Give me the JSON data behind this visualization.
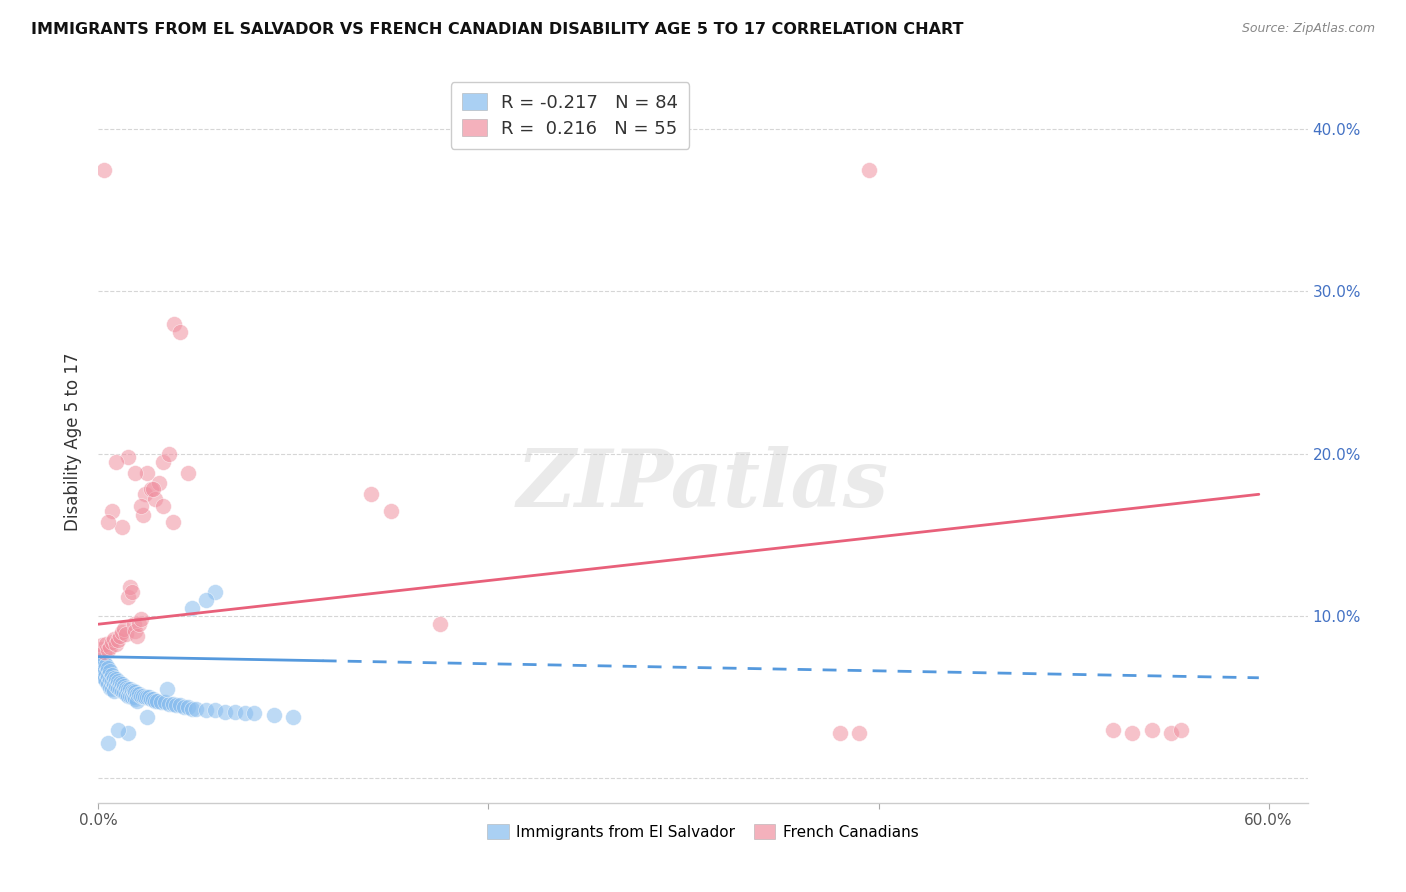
{
  "title": "IMMIGRANTS FROM EL SALVADOR VS FRENCH CANADIAN DISABILITY AGE 5 TO 17 CORRELATION CHART",
  "source": "Source: ZipAtlas.com",
  "ylabel": "Disability Age 5 to 17",
  "xlim": [
    0.0,
    0.62
  ],
  "ylim": [
    -0.015,
    0.43
  ],
  "yticks": [
    0.0,
    0.1,
    0.2,
    0.3,
    0.4
  ],
  "xticks": [
    0.0,
    0.2,
    0.4,
    0.6
  ],
  "xtick_labels": [
    "0.0%",
    "",
    "",
    "60.0%"
  ],
  "ytick_labels_right": [
    "",
    "10.0%",
    "20.0%",
    "30.0%",
    "40.0%"
  ],
  "blue_color": "#87BCEE",
  "pink_color": "#F090A0",
  "blue_line_color": "#5599DD",
  "pink_line_color": "#E8607A",
  "background_color": "#ffffff",
  "grid_color": "#cccccc",
  "legend_R_blue": "-0.217",
  "legend_N_blue": "84",
  "legend_R_pink": "0.216",
  "legend_N_pink": "55",
  "label_blue": "Immigrants from El Salvador",
  "label_pink": "French Canadians",
  "watermark": "ZIPatlas",
  "blue_line_solid_end": 0.115,
  "blue_line_x0": 0.0,
  "blue_line_x1": 0.595,
  "blue_line_y0": 0.075,
  "blue_line_y1": 0.062,
  "pink_line_x0": 0.0,
  "pink_line_x1": 0.595,
  "pink_line_y0": 0.095,
  "pink_line_y1": 0.175,
  "blue_scatter_x": [
    0.001,
    0.001,
    0.001,
    0.002,
    0.002,
    0.002,
    0.003,
    0.003,
    0.003,
    0.004,
    0.004,
    0.004,
    0.005,
    0.005,
    0.005,
    0.006,
    0.006,
    0.006,
    0.007,
    0.007,
    0.007,
    0.008,
    0.008,
    0.008,
    0.009,
    0.009,
    0.01,
    0.01,
    0.011,
    0.011,
    0.012,
    0.012,
    0.013,
    0.013,
    0.014,
    0.014,
    0.015,
    0.015,
    0.016,
    0.016,
    0.017,
    0.017,
    0.018,
    0.018,
    0.019,
    0.019,
    0.02,
    0.02,
    0.021,
    0.022,
    0.023,
    0.024,
    0.025,
    0.026,
    0.027,
    0.028,
    0.029,
    0.03,
    0.032,
    0.034,
    0.036,
    0.038,
    0.04,
    0.042,
    0.044,
    0.046,
    0.048,
    0.05,
    0.055,
    0.06,
    0.065,
    0.07,
    0.075,
    0.08,
    0.09,
    0.1,
    0.06,
    0.055,
    0.048,
    0.035,
    0.025,
    0.015,
    0.01,
    0.005
  ],
  "blue_scatter_y": [
    0.075,
    0.07,
    0.065,
    0.073,
    0.068,
    0.063,
    0.072,
    0.067,
    0.062,
    0.07,
    0.065,
    0.06,
    0.068,
    0.063,
    0.058,
    0.066,
    0.061,
    0.056,
    0.064,
    0.06,
    0.055,
    0.062,
    0.058,
    0.054,
    0.061,
    0.057,
    0.06,
    0.056,
    0.059,
    0.055,
    0.058,
    0.054,
    0.057,
    0.053,
    0.056,
    0.052,
    0.055,
    0.051,
    0.055,
    0.051,
    0.054,
    0.05,
    0.054,
    0.05,
    0.053,
    0.049,
    0.052,
    0.048,
    0.052,
    0.051,
    0.051,
    0.05,
    0.05,
    0.05,
    0.049,
    0.049,
    0.048,
    0.048,
    0.047,
    0.047,
    0.046,
    0.046,
    0.045,
    0.045,
    0.044,
    0.044,
    0.043,
    0.043,
    0.042,
    0.042,
    0.041,
    0.041,
    0.04,
    0.04,
    0.039,
    0.038,
    0.115,
    0.11,
    0.105,
    0.055,
    0.038,
    0.028,
    0.03,
    0.022
  ],
  "pink_scatter_x": [
    0.001,
    0.002,
    0.003,
    0.004,
    0.005,
    0.006,
    0.007,
    0.008,
    0.009,
    0.01,
    0.011,
    0.012,
    0.013,
    0.014,
    0.015,
    0.016,
    0.017,
    0.018,
    0.019,
    0.02,
    0.021,
    0.022,
    0.023,
    0.024,
    0.025,
    0.027,
    0.029,
    0.031,
    0.033,
    0.036,
    0.039,
    0.042,
    0.046,
    0.038,
    0.033,
    0.028,
    0.022,
    0.019,
    0.015,
    0.012,
    0.009,
    0.007,
    0.005,
    0.003,
    0.14,
    0.15,
    0.175,
    0.38,
    0.39,
    0.395,
    0.52,
    0.53,
    0.54,
    0.55,
    0.555
  ],
  "pink_scatter_y": [
    0.08,
    0.082,
    0.078,
    0.083,
    0.079,
    0.081,
    0.084,
    0.086,
    0.083,
    0.085,
    0.088,
    0.09,
    0.092,
    0.089,
    0.112,
    0.118,
    0.115,
    0.095,
    0.091,
    0.088,
    0.095,
    0.098,
    0.162,
    0.175,
    0.188,
    0.178,
    0.172,
    0.182,
    0.195,
    0.2,
    0.28,
    0.275,
    0.188,
    0.158,
    0.168,
    0.178,
    0.168,
    0.188,
    0.198,
    0.155,
    0.195,
    0.165,
    0.158,
    0.375,
    0.175,
    0.165,
    0.095,
    0.028,
    0.028,
    0.375,
    0.03,
    0.028,
    0.03,
    0.028,
    0.03
  ]
}
